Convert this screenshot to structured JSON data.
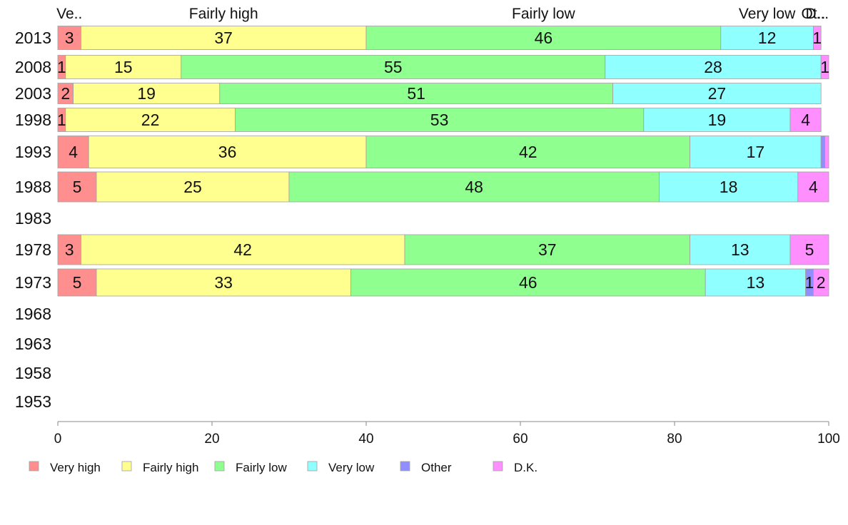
{
  "chart_data": {
    "type": "bar",
    "orientation": "horizontal",
    "stacked": true,
    "categories": [
      "2013",
      "2008",
      "2003",
      "1998",
      "1993",
      "1988",
      "1983",
      "1978",
      "1973",
      "1968",
      "1963",
      "1958",
      "1953"
    ],
    "series": [
      {
        "name": "Very high",
        "color": "#ff8f8f",
        "values": [
          3,
          1,
          2,
          1,
          4,
          5,
          null,
          3,
          5,
          null,
          null,
          null,
          null
        ],
        "labels": [
          "3",
          "1",
          "2",
          "1",
          "4",
          "5",
          "",
          "3",
          "5",
          "",
          "",
          "",
          ""
        ]
      },
      {
        "name": "Fairly high",
        "color": "#ffff8f",
        "values": [
          37,
          15,
          19,
          22,
          36,
          25,
          null,
          42,
          33,
          null,
          null,
          null,
          null
        ],
        "labels": [
          "37",
          "15",
          "19",
          "22",
          "36",
          "25",
          "",
          "42",
          "33",
          "",
          "",
          "",
          ""
        ]
      },
      {
        "name": "Fairly low",
        "color": "#8fff8f",
        "values": [
          46,
          55,
          51,
          53,
          42,
          48,
          null,
          37,
          46,
          null,
          null,
          null,
          null
        ],
        "labels": [
          "46",
          "55",
          "51",
          "53",
          "42",
          "48",
          "",
          "37",
          "46",
          "",
          "",
          "",
          ""
        ]
      },
      {
        "name": "Very low",
        "color": "#8fffff",
        "values": [
          12,
          28,
          27,
          19,
          17,
          18,
          null,
          13,
          13,
          null,
          null,
          null,
          null
        ],
        "labels": [
          "12",
          "28",
          "27",
          "19",
          "17",
          "18",
          "",
          "13",
          "13",
          "",
          "",
          "",
          ""
        ]
      },
      {
        "name": "Other",
        "color": "#8f8fff",
        "values": [
          0,
          0,
          0,
          0,
          0.5,
          0,
          null,
          0,
          1,
          null,
          null,
          null,
          null
        ],
        "labels": [
          "",
          "",
          "",
          "",
          "",
          "",
          "",
          "",
          "1",
          "",
          "",
          "",
          ""
        ]
      },
      {
        "name": "D.K.",
        "color": "#ff8fff",
        "values": [
          1,
          1,
          0,
          4,
          0.5,
          4,
          null,
          5,
          2,
          null,
          null,
          null,
          null
        ],
        "labels": [
          "1",
          "1",
          "",
          "4",
          "",
          "4",
          "",
          "5",
          "2",
          "",
          "",
          "",
          ""
        ]
      }
    ],
    "top_labels": [
      "Ve..",
      "Fairly high",
      "Fairly low",
      "Very low",
      "Ot..",
      "D..."
    ],
    "xlim": [
      0,
      100
    ],
    "xticks": [
      "0",
      "20",
      "40",
      "60",
      "80",
      "100"
    ],
    "grid": false,
    "legend_position": "bottom"
  }
}
